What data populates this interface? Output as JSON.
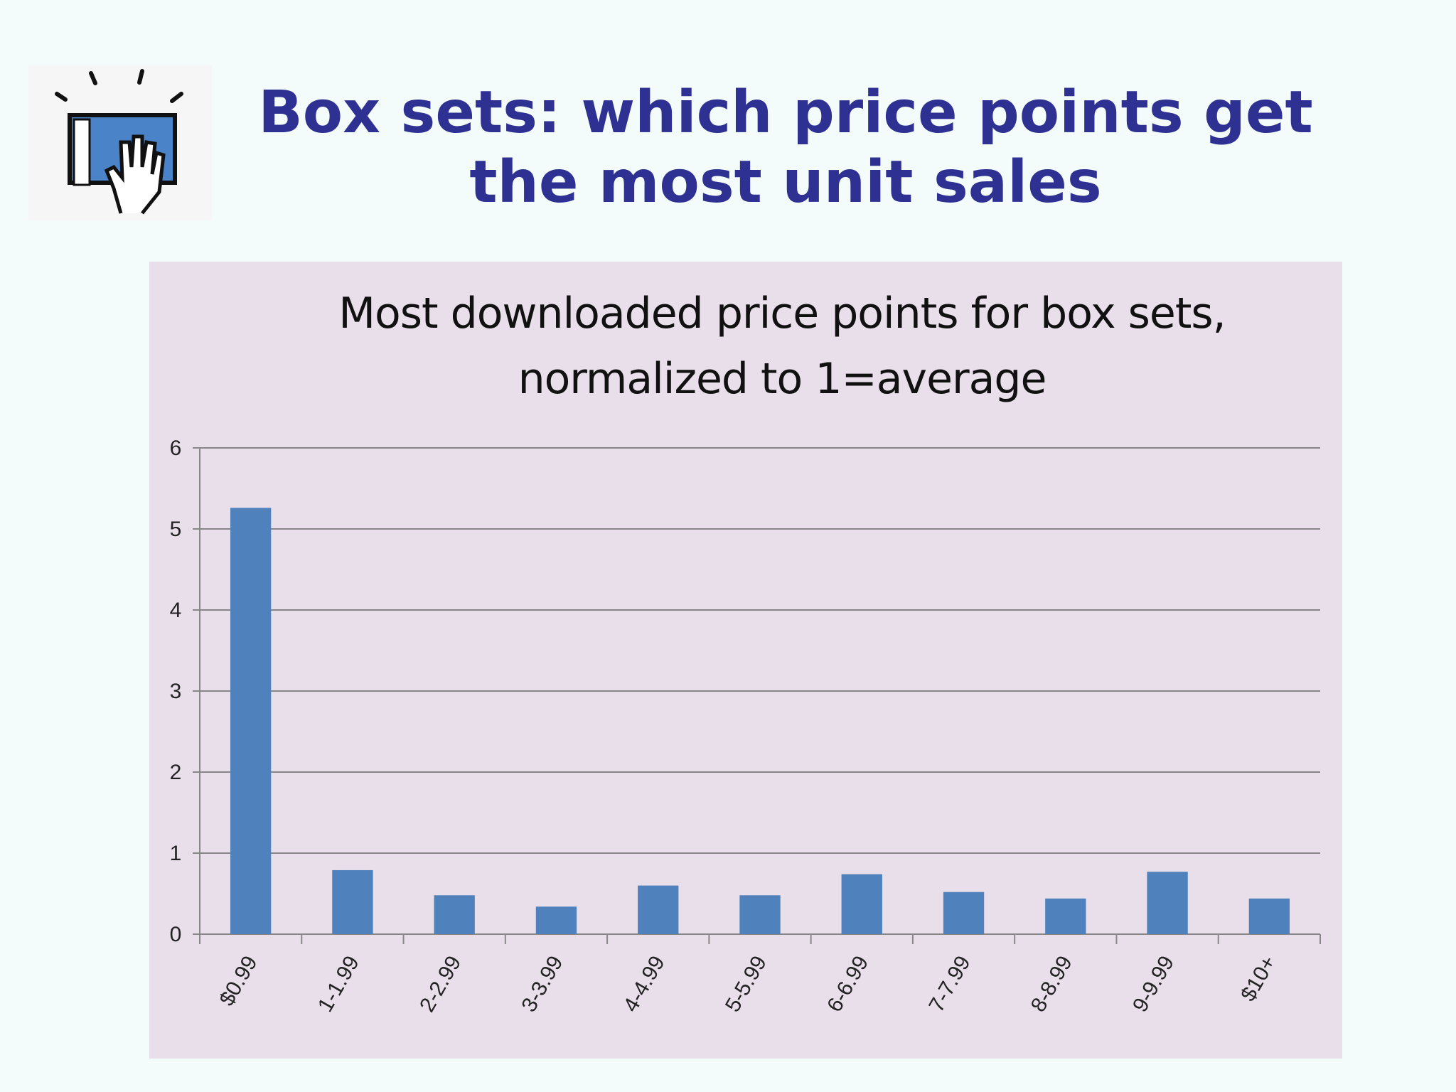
{
  "slide_title": "Box sets:  which price points get the most unit sales",
  "chart_data": {
    "type": "bar",
    "title": "Most downloaded price points for box sets, normalized to 1=average",
    "categories": [
      "$0.99",
      "1-1.99",
      "2-2.99",
      "3-3.99",
      "4-4.99",
      "5-5.99",
      "6-6.99",
      "7-7.99",
      "8-8.99",
      "9-9.99",
      "$10+"
    ],
    "values": [
      5.26,
      0.79,
      0.48,
      0.34,
      0.6,
      0.48,
      0.74,
      0.52,
      0.44,
      0.77,
      0.44
    ],
    "color": "#4f81bd",
    "ylim": [
      0,
      6
    ],
    "yticks": [
      0,
      1,
      2,
      3,
      4,
      5,
      6
    ],
    "grid": true
  }
}
